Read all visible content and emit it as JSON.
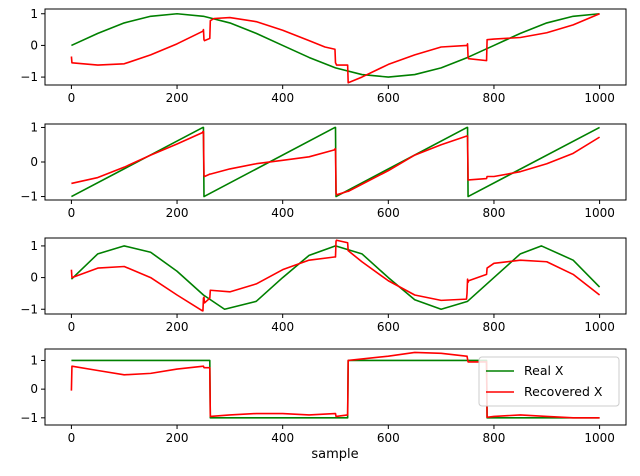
{
  "chart_data": {
    "type": "line",
    "xlabel": "sample",
    "legend": {
      "position": "lower-right (in last subplot)",
      "entries": [
        {
          "name": "Real X",
          "color": "#008000"
        },
        {
          "name": "Recovered X",
          "color": "#ff0000"
        }
      ]
    },
    "xlim": [
      -50,
      1050
    ],
    "x_ticks": [
      0,
      200,
      400,
      600,
      800,
      1000
    ],
    "subplots": [
      {
        "ylim": [
          -1.25,
          1.15
        ],
        "y_ticks": [
          -1,
          0,
          1
        ],
        "series": [
          {
            "name": "Real X",
            "color": "#008000",
            "x": [
              0,
              50,
              100,
              150,
              200,
              250,
              300,
              350,
              400,
              450,
              500,
              550,
              600,
              650,
              700,
              750,
              800,
              850,
              900,
              950,
              1000
            ],
            "y": [
              0.0,
              0.38,
              0.71,
              0.92,
              1.0,
              0.92,
              0.71,
              0.38,
              0.0,
              -0.38,
              -0.71,
              -0.92,
              -1.0,
              -0.92,
              -0.71,
              -0.38,
              0.0,
              0.38,
              0.71,
              0.92,
              1.0
            ]
          },
          {
            "name": "Recovered X",
            "color": "#ff0000",
            "x": [
              0,
              1,
              50,
              100,
              150,
              200,
              249,
              250,
              251,
              252,
              262,
              263,
              270,
              300,
              350,
              400,
              450,
              480,
              499,
              500,
              501,
              502,
              523,
              524,
              550,
              600,
              650,
              700,
              749,
              750,
              751,
              752,
              786,
              787,
              800,
              850,
              900,
              950,
              1000
            ],
            "y": [
              -0.35,
              -0.55,
              -0.62,
              -0.58,
              -0.3,
              0.05,
              0.45,
              0.5,
              0.18,
              0.15,
              0.22,
              0.78,
              0.85,
              0.88,
              0.75,
              0.48,
              0.15,
              -0.05,
              -0.12,
              -0.55,
              -0.58,
              -0.62,
              -0.62,
              -1.18,
              -1.0,
              -0.6,
              -0.3,
              -0.05,
              0.0,
              0.05,
              -0.38,
              -0.42,
              -0.48,
              0.18,
              0.2,
              0.25,
              0.4,
              0.65,
              1.0
            ]
          }
        ]
      },
      {
        "ylim": [
          -1.1,
          1.1
        ],
        "y_ticks": [
          -1,
          0,
          1
        ],
        "series": [
          {
            "name": "Real X",
            "color": "#008000",
            "x": [
              0,
              249,
              250,
              251,
              499,
              500,
              501,
              749,
              750,
              751,
              1000
            ],
            "y": [
              -1.0,
              1.0,
              1.0,
              -1.0,
              1.0,
              1.0,
              -1.0,
              1.0,
              1.0,
              -1.0,
              1.0
            ]
          },
          {
            "name": "Recovered X",
            "color": "#ff0000",
            "x": [
              0,
              50,
              100,
              150,
              200,
              248,
              249,
              250,
              251,
              252,
              262,
              263,
              300,
              350,
              400,
              450,
              498,
              499,
              500,
              501,
              502,
              523,
              524,
              600,
              650,
              700,
              748,
              749,
              750,
              751,
              752,
              786,
              787,
              800,
              850,
              900,
              950,
              1000
            ],
            "y": [
              -0.62,
              -0.45,
              -0.15,
              0.2,
              0.52,
              0.85,
              0.88,
              0.88,
              -0.38,
              -0.42,
              -0.35,
              -0.35,
              -0.2,
              -0.05,
              0.05,
              0.15,
              0.35,
              0.38,
              0.38,
              -0.9,
              -0.95,
              -0.85,
              -0.85,
              -0.25,
              0.2,
              0.5,
              0.75,
              0.75,
              0.75,
              -0.52,
              -0.52,
              -0.48,
              -0.42,
              -0.42,
              -0.28,
              -0.05,
              0.25,
              0.72
            ]
          }
        ]
      },
      {
        "ylim": [
          -1.15,
          1.25
        ],
        "y_ticks": [
          -1,
          0,
          1
        ],
        "series": [
          {
            "name": "Real X",
            "color": "#008000",
            "x": [
              0,
              50,
              100,
              150,
              200,
              250,
              290,
              350,
              400,
              450,
              500,
              550,
              600,
              650,
              700,
              750,
              800,
              850,
              890,
              950,
              1000
            ],
            "y": [
              -0.05,
              0.75,
              1.0,
              0.8,
              0.2,
              -0.55,
              -1.0,
              -0.75,
              0.0,
              0.7,
              1.0,
              0.75,
              0.0,
              -0.7,
              -1.0,
              -0.75,
              0.0,
              0.75,
              1.0,
              0.55,
              -0.3
            ]
          },
          {
            "name": "Recovered X",
            "color": "#ff0000",
            "x": [
              0,
              1,
              50,
              100,
              150,
              200,
              248,
              249,
              250,
              251,
              252,
              262,
              263,
              300,
              350,
              400,
              450,
              498,
              499,
              500,
              501,
              502,
              523,
              524,
              550,
              600,
              650,
              700,
              748,
              749,
              750,
              751,
              752,
              786,
              787,
              800,
              850,
              900,
              950,
              1000
            ],
            "y": [
              0.25,
              0.0,
              0.3,
              0.35,
              0.0,
              -0.55,
              -1.05,
              -1.05,
              -0.65,
              -0.62,
              -0.8,
              -0.65,
              -0.4,
              -0.45,
              -0.2,
              0.25,
              0.55,
              0.65,
              0.65,
              0.65,
              1.15,
              1.18,
              1.1,
              0.85,
              0.5,
              -0.1,
              -0.55,
              -0.72,
              -0.68,
              -0.5,
              -0.05,
              -0.15,
              -0.1,
              0.1,
              0.3,
              0.45,
              0.55,
              0.5,
              0.1,
              -0.55
            ]
          }
        ]
      },
      {
        "ylim": [
          -1.25,
          1.4
        ],
        "y_ticks": [
          -1,
          0,
          1
        ],
        "series": [
          {
            "name": "Real X",
            "color": "#008000",
            "x": [
              0,
              1,
              262,
              263,
              523,
              524,
              786,
              787,
              1000
            ],
            "y": [
              1.0,
              1.0,
              1.0,
              -1.0,
              -1.0,
              1.0,
              1.0,
              -1.0,
              -1.0
            ]
          },
          {
            "name": "Recovered X",
            "color": "#ff0000",
            "x": [
              0,
              1,
              50,
              100,
              150,
              200,
              250,
              251,
              262,
              263,
              300,
              350,
              400,
              450,
              499,
              500,
              501,
              523,
              524,
              600,
              650,
              700,
              748,
              749,
              750,
              751,
              786,
              787,
              800,
              850,
              900,
              950,
              1000
            ],
            "y": [
              -0.05,
              0.8,
              0.65,
              0.5,
              0.55,
              0.7,
              0.8,
              0.75,
              0.75,
              -0.95,
              -0.9,
              -0.85,
              -0.85,
              -0.9,
              -0.85,
              -0.85,
              -0.95,
              -0.9,
              1.0,
              1.15,
              1.28,
              1.25,
              1.15,
              1.15,
              1.05,
              0.95,
              0.95,
              -0.98,
              -0.95,
              -0.9,
              -0.95,
              -1.0,
              -1.0
            ]
          }
        ]
      }
    ]
  }
}
